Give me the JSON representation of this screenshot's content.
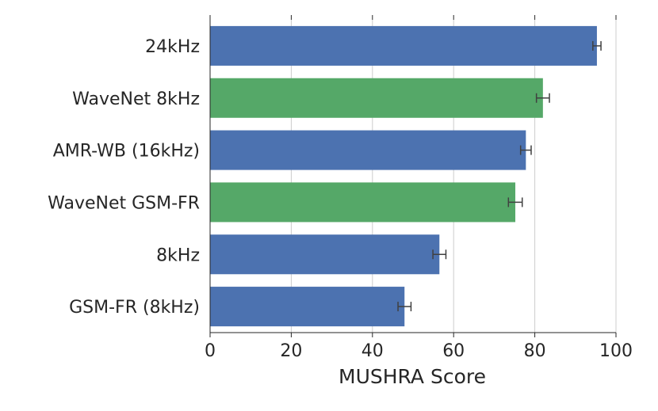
{
  "chart_data": {
    "type": "bar",
    "orientation": "horizontal",
    "xlabel": "MUSHRA Score",
    "xlim": [
      0,
      100
    ],
    "xticks": [
      0,
      20,
      40,
      60,
      80,
      100
    ],
    "grid": true,
    "categories": [
      "24kHz",
      "WaveNet 8kHz",
      "AMR-WB (16kHz)",
      "WaveNet GSM-FR",
      "8kHz",
      "GSM-FR (8kHz)"
    ],
    "values": [
      95.3,
      82.0,
      77.8,
      75.2,
      56.5,
      47.9
    ],
    "errors": [
      1.0,
      1.6,
      1.3,
      1.7,
      1.6,
      1.6
    ],
    "colors": [
      "#4c72b0",
      "#55a868",
      "#4c72b0",
      "#55a868",
      "#4c72b0",
      "#4c72b0"
    ],
    "error_color": "#404040"
  }
}
